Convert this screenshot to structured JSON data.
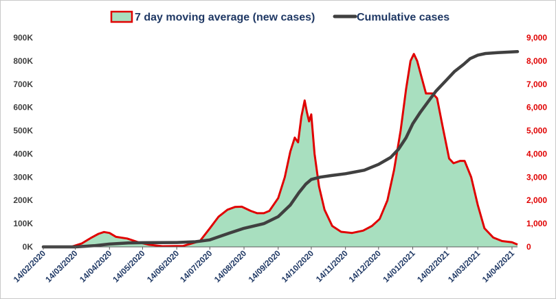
{
  "chart_data": {
    "type": "area",
    "title": "",
    "xlabel": "",
    "ylabel": "",
    "y2label": "",
    "legend_position": "top-center",
    "grid": false,
    "x_range": [
      "2020-02-14",
      "2021-04-19"
    ],
    "y_left": {
      "range": [
        0,
        900000
      ],
      "tick_values": [
        0,
        100000,
        200000,
        300000,
        400000,
        500000,
        600000,
        700000,
        800000,
        900000
      ],
      "tick_labels": [
        "0K",
        "100K",
        "200K",
        "300K",
        "400K",
        "500K",
        "600K",
        "700K",
        "800K",
        "900K"
      ]
    },
    "y_right": {
      "range": [
        0,
        9000
      ],
      "tick_values": [
        0,
        1000,
        2000,
        3000,
        4000,
        5000,
        6000,
        7000,
        8000,
        9000
      ],
      "tick_labels": [
        "0",
        "1,000",
        "2,000",
        "3,000",
        "4,000",
        "5,000",
        "6,000",
        "7,000",
        "8,000",
        "9,000"
      ]
    },
    "x_ticks": [
      {
        "date": "2020-02-14",
        "label": "14/02/2020"
      },
      {
        "date": "2020-03-14",
        "label": "14/03/2020"
      },
      {
        "date": "2020-04-14",
        "label": "14/04/2020"
      },
      {
        "date": "2020-05-14",
        "label": "14/05/2020"
      },
      {
        "date": "2020-06-14",
        "label": "14/06/2020"
      },
      {
        "date": "2020-07-14",
        "label": "14/07/2020"
      },
      {
        "date": "2020-08-14",
        "label": "14/08/2020"
      },
      {
        "date": "2020-09-14",
        "label": "14/09/2020"
      },
      {
        "date": "2020-10-14",
        "label": "14/10/2020"
      },
      {
        "date": "2020-11-14",
        "label": "14/11/2020"
      },
      {
        "date": "2020-12-14",
        "label": "14/12/2020"
      },
      {
        "date": "2021-01-14",
        "label": "14/01/2021"
      },
      {
        "date": "2021-02-14",
        "label": "14/02/2021"
      },
      {
        "date": "2021-03-14",
        "label": "14/03/2021"
      },
      {
        "date": "2021-04-14",
        "label": "14/04/2021"
      }
    ],
    "series": [
      {
        "name": "7 day moving average (new cases)",
        "axis": "right",
        "style": "area",
        "fill_color": "#a8dfbf",
        "line_color": "#e00000",
        "points": [
          {
            "x": "2020-02-14",
            "y": 0
          },
          {
            "x": "2020-03-10",
            "y": 0
          },
          {
            "x": "2020-03-20",
            "y": 150
          },
          {
            "x": "2020-03-28",
            "y": 380
          },
          {
            "x": "2020-04-04",
            "y": 560
          },
          {
            "x": "2020-04-09",
            "y": 640
          },
          {
            "x": "2020-04-14",
            "y": 600
          },
          {
            "x": "2020-04-20",
            "y": 430
          },
          {
            "x": "2020-04-30",
            "y": 360
          },
          {
            "x": "2020-05-10",
            "y": 200
          },
          {
            "x": "2020-05-20",
            "y": 90
          },
          {
            "x": "2020-06-01",
            "y": 30
          },
          {
            "x": "2020-06-20",
            "y": 40
          },
          {
            "x": "2020-07-05",
            "y": 250
          },
          {
            "x": "2020-07-14",
            "y": 800
          },
          {
            "x": "2020-07-22",
            "y": 1300
          },
          {
            "x": "2020-07-30",
            "y": 1600
          },
          {
            "x": "2020-08-06",
            "y": 1720
          },
          {
            "x": "2020-08-12",
            "y": 1730
          },
          {
            "x": "2020-08-20",
            "y": 1550
          },
          {
            "x": "2020-08-26",
            "y": 1450
          },
          {
            "x": "2020-09-01",
            "y": 1450
          },
          {
            "x": "2020-09-06",
            "y": 1550
          },
          {
            "x": "2020-09-14",
            "y": 2100
          },
          {
            "x": "2020-09-20",
            "y": 3000
          },
          {
            "x": "2020-09-25",
            "y": 4100
          },
          {
            "x": "2020-09-29",
            "y": 4700
          },
          {
            "x": "2020-10-02",
            "y": 4500
          },
          {
            "x": "2020-10-05",
            "y": 5600
          },
          {
            "x": "2020-10-08",
            "y": 6300
          },
          {
            "x": "2020-10-10",
            "y": 5800
          },
          {
            "x": "2020-10-12",
            "y": 5400
          },
          {
            "x": "2020-10-14",
            "y": 5700
          },
          {
            "x": "2020-10-17",
            "y": 4000
          },
          {
            "x": "2020-10-21",
            "y": 2600
          },
          {
            "x": "2020-10-26",
            "y": 1600
          },
          {
            "x": "2020-11-02",
            "y": 900
          },
          {
            "x": "2020-11-10",
            "y": 650
          },
          {
            "x": "2020-11-20",
            "y": 600
          },
          {
            "x": "2020-11-30",
            "y": 700
          },
          {
            "x": "2020-12-08",
            "y": 900
          },
          {
            "x": "2020-12-15",
            "y": 1200
          },
          {
            "x": "2020-12-22",
            "y": 2000
          },
          {
            "x": "2020-12-28",
            "y": 3300
          },
          {
            "x": "2021-01-03",
            "y": 5000
          },
          {
            "x": "2021-01-08",
            "y": 6800
          },
          {
            "x": "2021-01-12",
            "y": 8000
          },
          {
            "x": "2021-01-15",
            "y": 8300
          },
          {
            "x": "2021-01-18",
            "y": 8000
          },
          {
            "x": "2021-01-22",
            "y": 7300
          },
          {
            "x": "2021-01-26",
            "y": 6600
          },
          {
            "x": "2021-02-01",
            "y": 6600
          },
          {
            "x": "2021-02-05",
            "y": 6400
          },
          {
            "x": "2021-02-10",
            "y": 5200
          },
          {
            "x": "2021-02-16",
            "y": 3800
          },
          {
            "x": "2021-02-20",
            "y": 3600
          },
          {
            "x": "2021-02-26",
            "y": 3700
          },
          {
            "x": "2021-03-02",
            "y": 3700
          },
          {
            "x": "2021-03-08",
            "y": 3000
          },
          {
            "x": "2021-03-14",
            "y": 1800
          },
          {
            "x": "2021-03-20",
            "y": 800
          },
          {
            "x": "2021-03-28",
            "y": 400
          },
          {
            "x": "2021-04-05",
            "y": 250
          },
          {
            "x": "2021-04-14",
            "y": 200
          },
          {
            "x": "2021-04-19",
            "y": 100
          }
        ]
      },
      {
        "name": "Cumulative cases",
        "axis": "left",
        "style": "line",
        "line_color": "#404040",
        "points": [
          {
            "x": "2020-02-14",
            "y": 0
          },
          {
            "x": "2020-03-14",
            "y": 0
          },
          {
            "x": "2020-03-31",
            "y": 5000
          },
          {
            "x": "2020-04-14",
            "y": 12000
          },
          {
            "x": "2020-05-01",
            "y": 17000
          },
          {
            "x": "2020-05-14",
            "y": 18000
          },
          {
            "x": "2020-06-14",
            "y": 19000
          },
          {
            "x": "2020-07-01",
            "y": 22000
          },
          {
            "x": "2020-07-14",
            "y": 30000
          },
          {
            "x": "2020-08-01",
            "y": 60000
          },
          {
            "x": "2020-08-14",
            "y": 80000
          },
          {
            "x": "2020-09-01",
            "y": 100000
          },
          {
            "x": "2020-09-14",
            "y": 130000
          },
          {
            "x": "2020-09-25",
            "y": 180000
          },
          {
            "x": "2020-10-03",
            "y": 235000
          },
          {
            "x": "2020-10-09",
            "y": 270000
          },
          {
            "x": "2020-10-14",
            "y": 290000
          },
          {
            "x": "2020-10-22",
            "y": 300000
          },
          {
            "x": "2020-11-01",
            "y": 307000
          },
          {
            "x": "2020-11-14",
            "y": 315000
          },
          {
            "x": "2020-12-01",
            "y": 330000
          },
          {
            "x": "2020-12-14",
            "y": 355000
          },
          {
            "x": "2020-12-25",
            "y": 385000
          },
          {
            "x": "2021-01-01",
            "y": 420000
          },
          {
            "x": "2021-01-08",
            "y": 470000
          },
          {
            "x": "2021-01-14",
            "y": 530000
          },
          {
            "x": "2021-01-21",
            "y": 580000
          },
          {
            "x": "2021-01-28",
            "y": 625000
          },
          {
            "x": "2021-02-04",
            "y": 670000
          },
          {
            "x": "2021-02-14",
            "y": 720000
          },
          {
            "x": "2021-02-21",
            "y": 755000
          },
          {
            "x": "2021-03-01",
            "y": 785000
          },
          {
            "x": "2021-03-07",
            "y": 810000
          },
          {
            "x": "2021-03-14",
            "y": 825000
          },
          {
            "x": "2021-03-21",
            "y": 832000
          },
          {
            "x": "2021-04-01",
            "y": 836000
          },
          {
            "x": "2021-04-19",
            "y": 840000
          }
        ]
      }
    ]
  }
}
